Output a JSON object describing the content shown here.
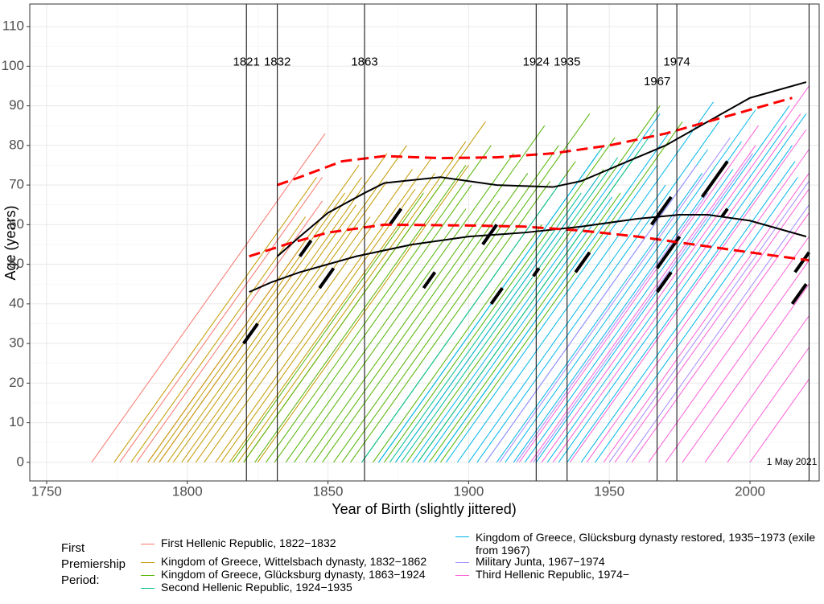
{
  "chart_data": {
    "type": "lifeline",
    "x_label": "Year of Birth (slightly jittered)",
    "y_label": "Age (years)",
    "xlim": [
      1744,
      2024.6
    ],
    "ylim": [
      -4.7,
      115.7
    ],
    "xticks": [
      1750,
      1800,
      1850,
      1900,
      1950,
      2000
    ],
    "yticks": [
      0,
      10,
      20,
      30,
      40,
      50,
      60,
      70,
      80,
      90,
      100,
      110
    ],
    "grid": true,
    "legend_title": "First Premiership Period:",
    "events": [
      1821,
      1832,
      1863,
      1924,
      1935,
      1967,
      1974
    ],
    "end_year": 2021,
    "end_label": "1 May 2021",
    "series": [
      {
        "name": "First Hellenic Republic, 1822−1832",
        "color": "#F8766D",
        "x": [
          1766,
          1776,
          1782,
          1786,
          1790
        ],
        "values": [
          83,
          72,
          66,
          55,
          50
        ]
      },
      {
        "name": "Kingdom of Greece, Wittelsbach dynasty, 1832−1862",
        "color": "#C49A00",
        "x": [
          1774,
          1780,
          1786,
          1788,
          1790,
          1793,
          1795,
          1798,
          1800,
          1803,
          1806,
          1810,
          1812,
          1815,
          1818,
          1820,
          1825
        ],
        "values": [
          72,
          62,
          75,
          68,
          72,
          78,
          65,
          80,
          71,
          62,
          74,
          77,
          69,
          73,
          81,
          86,
          75
        ]
      },
      {
        "name": "Kingdom of Greece, Glücksburg dynasty, 1863−1924",
        "color": "#53B400",
        "x": [
          1816,
          1820,
          1824,
          1828,
          1831,
          1835,
          1838,
          1842,
          1845,
          1848,
          1852,
          1855,
          1858,
          1862,
          1866,
          1870,
          1874,
          1878,
          1882,
          1886,
          1890
        ],
        "values": [
          68,
          72,
          75,
          80,
          70,
          64,
          78,
          85,
          66,
          73,
          80,
          88,
          71,
          76,
          60,
          82,
          74,
          90,
          79,
          68,
          86
        ]
      },
      {
        "name": "Second Hellenic Republic, 1924−1935",
        "color": "#00C094",
        "x": [
          1862,
          1868,
          1872,
          1876,
          1882,
          1888
        ],
        "values": [
          72,
          80,
          68,
          77,
          84,
          70
        ]
      },
      {
        "name": "Kingdom of Greece, Glücksburg dynasty restored, 1935−1973 (exile from 1967)",
        "color": "#00B6EB",
        "x": [
          1868,
          1874,
          1880,
          1884,
          1888,
          1892,
          1896,
          1900,
          1903,
          1906,
          1910,
          1913,
          1916,
          1920,
          1924,
          1928,
          1932,
          1935,
          1940,
          1945
        ],
        "values": [
          78,
          72,
          88,
          67,
          83,
          75,
          91,
          70,
          86,
          79,
          73,
          89,
          81,
          74,
          90,
          85,
          88,
          80,
          76,
          72
        ]
      },
      {
        "name": "Military Junta, 1967−1974",
        "color": "#A58AFF",
        "x": [
          1906,
          1911,
          1917,
          1923,
          1950,
          1956
        ],
        "values": [
          75,
          82,
          68,
          78,
          71,
          65
        ]
      },
      {
        "name": "Third Hellenic Republic, 1974−",
        "color": "#FB61D7",
        "x": [
          1918,
          1922,
          1926,
          1930,
          1936,
          1942,
          1948,
          1952,
          1958,
          1964,
          1970,
          1976,
          1984,
          1992,
          2000
        ],
        "values": [
          85,
          80,
          95,
          88,
          84,
          79,
          73,
          69,
          63,
          57,
          51,
          45,
          37,
          29,
          21
        ]
      }
    ],
    "terms": [
      {
        "birth": 1790,
        "start": 30,
        "end": 35
      },
      {
        "birth": 1788,
        "start": 52,
        "end": 56
      },
      {
        "birth": 1803,
        "start": 44,
        "end": 49
      },
      {
        "birth": 1812,
        "start": 60,
        "end": 64
      },
      {
        "birth": 1840,
        "start": 44,
        "end": 48
      },
      {
        "birth": 1850,
        "start": 55,
        "end": 60
      },
      {
        "birth": 1868,
        "start": 40,
        "end": 44
      },
      {
        "birth": 1890,
        "start": 48,
        "end": 53
      },
      {
        "birth": 1876,
        "start": 47,
        "end": 49
      },
      {
        "birth": 1905,
        "start": 60,
        "end": 67
      },
      {
        "birth": 1918,
        "start": 49,
        "end": 57
      },
      {
        "birth": 1924,
        "start": 43,
        "end": 48
      },
      {
        "birth": 1916,
        "start": 67,
        "end": 76
      },
      {
        "birth": 1928,
        "start": 62,
        "end": 64
      },
      {
        "birth": 1975,
        "start": 40,
        "end": 45
      },
      {
        "birth": 1968,
        "start": 48,
        "end": 53
      }
    ],
    "curves": [
      {
        "color": "#000000",
        "dashed": false,
        "x": [
          1832,
          1840,
          1850,
          1863,
          1870,
          1890,
          1910,
          1930,
          1940,
          1950,
          1960,
          1970,
          1980,
          1990,
          2000,
          2020
        ],
        "values": [
          52,
          57,
          63,
          68,
          70.5,
          72,
          70,
          69.5,
          71,
          74,
          77,
          80,
          84,
          88,
          92,
          96
        ]
      },
      {
        "color": "#000000",
        "dashed": false,
        "x": [
          1822,
          1830,
          1840,
          1860,
          1880,
          1900,
          1920,
          1940,
          1960,
          1975,
          1985,
          2000,
          2020
        ],
        "values": [
          43,
          45.5,
          48,
          52,
          55,
          57,
          58,
          59.5,
          61.5,
          62.5,
          62.5,
          61,
          57
        ]
      },
      {
        "color": "#FF0000",
        "dashed": true,
        "x": [
          1832,
          1840,
          1855,
          1870,
          1890,
          1910,
          1930,
          1950,
          1970,
          1990,
          2015
        ],
        "values": [
          70,
          72,
          76,
          77.3,
          76.8,
          77,
          78,
          80,
          83,
          87,
          92
        ]
      },
      {
        "color": "#FF0000",
        "dashed": true,
        "x": [
          1822,
          1835,
          1850,
          1870,
          1900,
          1920,
          1940,
          1960,
          1980,
          2000,
          2021
        ],
        "values": [
          52,
          55,
          58,
          60,
          59.8,
          59.5,
          58.5,
          57,
          55,
          53,
          51
        ]
      }
    ]
  }
}
